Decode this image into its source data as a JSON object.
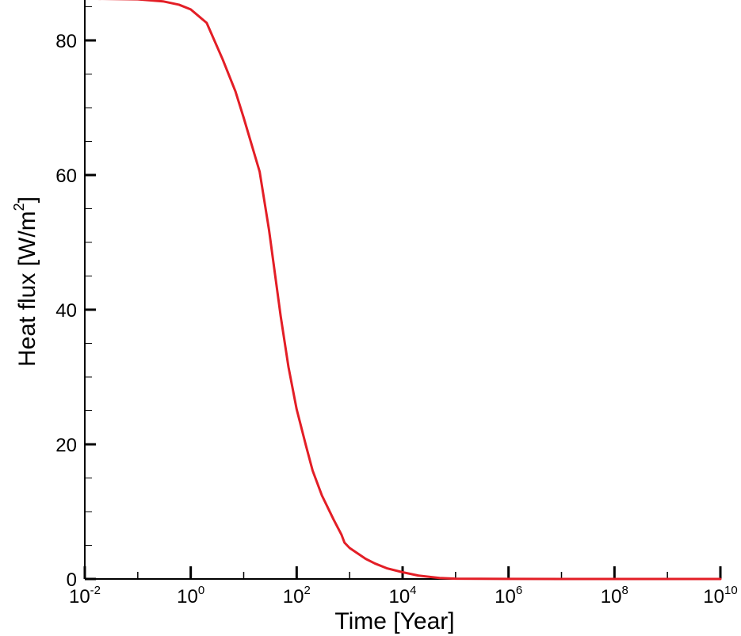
{
  "chart_data": {
    "type": "line",
    "title": "",
    "xlabel": "Time [Year]",
    "ylabel_main": "Heat flux [W/m",
    "ylabel_sup": "2",
    "ylabel_end": "]",
    "x_scale": "log",
    "xlim": [
      0.01,
      10000000000
    ],
    "ylim": [
      0,
      86
    ],
    "grid": false,
    "legend": "none",
    "line_color": "#e31e26",
    "x_ticks": [
      {
        "base": "10",
        "exp": "-2"
      },
      {
        "base": "10",
        "exp": "0"
      },
      {
        "base": "10",
        "exp": "2"
      },
      {
        "base": "10",
        "exp": "4"
      },
      {
        "base": "10",
        "exp": "6"
      },
      {
        "base": "10",
        "exp": "8"
      },
      {
        "base": "10",
        "exp": "10"
      }
    ],
    "y_ticks": [
      "0",
      "20",
      "40",
      "60",
      "80"
    ],
    "series": [
      {
        "x": [
          0.01,
          0.1,
          0.3,
          0.6,
          1,
          2,
          4,
          7,
          10,
          20,
          30,
          50,
          70,
          100,
          150,
          200,
          300,
          500,
          700,
          800,
          1000,
          2000,
          3000,
          5000,
          10000,
          20000,
          50000,
          100000,
          1000000,
          10000000,
          100000000,
          1000000000,
          10000000000
        ],
        "y": [
          86.2,
          86.1,
          85.8,
          85.3,
          84.6,
          82.6,
          77.2,
          72.4,
          68.5,
          60.5,
          51.9,
          39.0,
          31.5,
          25.2,
          19.8,
          16.1,
          12.4,
          8.8,
          6.6,
          5.4,
          4.6,
          3.0,
          2.3,
          1.6,
          1.0,
          0.5,
          0.15,
          0.05,
          0.01,
          0,
          0,
          0,
          0
        ]
      }
    ]
  }
}
